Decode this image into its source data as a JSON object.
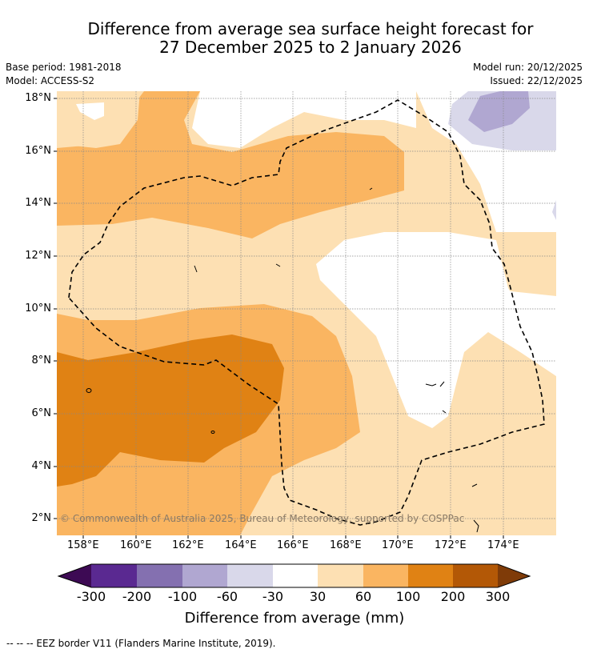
{
  "title": {
    "line1": "Difference from average sea surface height forecast for",
    "line2": "27 December 2025 to 2 January 2026"
  },
  "meta": {
    "base_period": "Base period: 1981-2018",
    "model": "Model: ACCESS-S2",
    "model_run": "Model run: 20/12/2025",
    "issued": "Issued: 22/12/2025"
  },
  "map": {
    "lat_labels": [
      "18°N",
      "16°N",
      "14°N",
      "12°N",
      "10°N",
      "8°N",
      "6°N",
      "4°N",
      "2°N"
    ],
    "lon_labels": [
      "158°E",
      "160°E",
      "162°E",
      "164°E",
      "166°E",
      "168°E",
      "170°E",
      "172°E",
      "174°E"
    ],
    "lat_range": [
      1.5,
      18.3
    ],
    "lon_range": [
      157.0,
      176.0
    ],
    "copyright": "© Commonwealth of Australia 2025, Bureau of Meteorology, supported by COSPPac"
  },
  "colorbar": {
    "ticks": [
      "-300",
      "-200",
      "-100",
      "-60",
      "-30",
      "30",
      "60",
      "100",
      "200",
      "300"
    ],
    "colors": [
      "#3d0a54",
      "#5a2991",
      "#8470b0",
      "#b0a7d1",
      "#d9d8ea",
      "#ffffff",
      "#fde0b3",
      "#fab561",
      "#e08214",
      "#b35806",
      "#7f3b08"
    ],
    "label": "Difference from average (mm)"
  },
  "footnote": "--  --  -- EEZ border V11 (Flanders Marine Institute, 2019)."
}
